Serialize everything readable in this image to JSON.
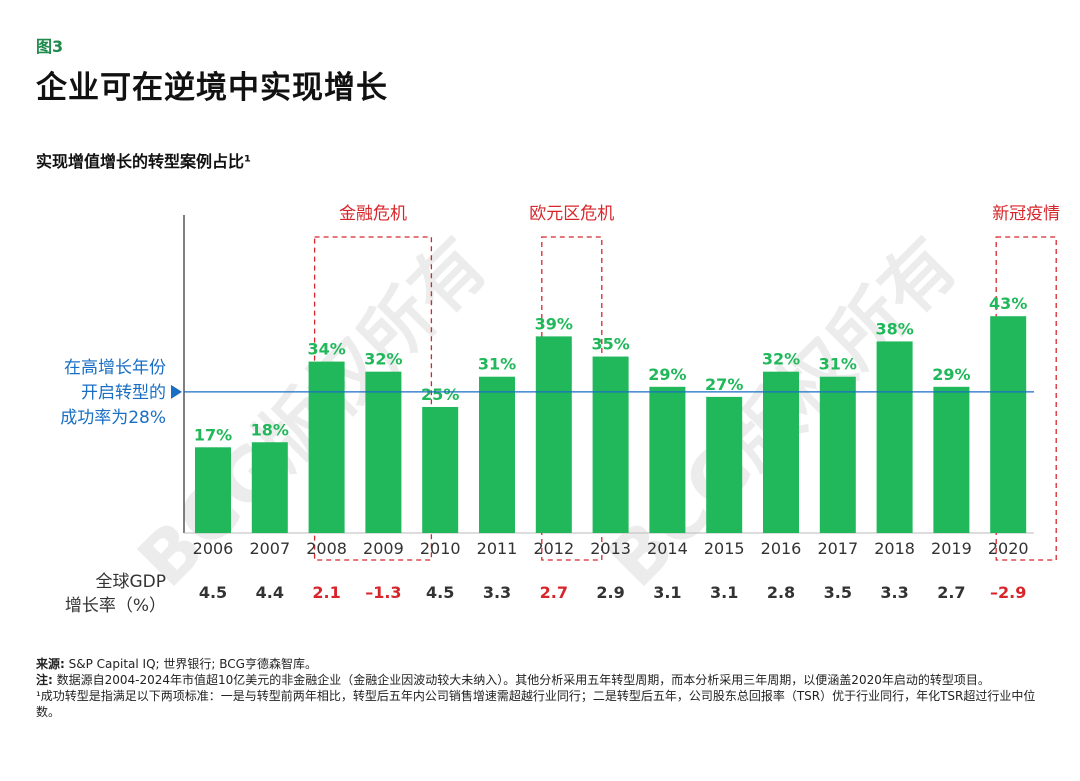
{
  "figure_label": "图3",
  "title": "企业可在逆境中实现增长",
  "subtitle": "实现增值增长的转型案例占比¹",
  "watermark": "BCG版权所有",
  "colors": {
    "bar": "#20b85a",
    "value_label": "#20b85a",
    "crisis": "#d7262b",
    "avg_line": "#1a6fc4",
    "text": "#1a1a1a",
    "axis": "#555555"
  },
  "chart_data": {
    "type": "bar",
    "title": "实现增值增长的转型案例占比¹",
    "categories": [
      "2006",
      "2007",
      "2008",
      "2009",
      "2010",
      "2011",
      "2012",
      "2013",
      "2014",
      "2015",
      "2016",
      "2017",
      "2018",
      "2019",
      "2020"
    ],
    "values": [
      17,
      18,
      34,
      32,
      25,
      31,
      39,
      35,
      29,
      27,
      32,
      31,
      38,
      29,
      43
    ],
    "value_labels": [
      "17%",
      "18%",
      "34%",
      "32%",
      "25%",
      "31%",
      "39%",
      "35%",
      "29%",
      "27%",
      "32%",
      "31%",
      "38%",
      "29%",
      "43%"
    ],
    "ylim": [
      0,
      60
    ],
    "reference_line": {
      "value": 28,
      "label_lines": [
        "在高增长年份",
        "开启转型的",
        "成功率为28%"
      ]
    },
    "crisis_periods": [
      {
        "label": "金融危机",
        "categories": [
          "2008",
          "2009"
        ]
      },
      {
        "label": "欧元区危机",
        "categories": [
          "2012"
        ]
      },
      {
        "label": "新冠疫情",
        "categories": [
          "2020"
        ]
      }
    ],
    "gdp_row": {
      "label_lines": [
        "全球GDP",
        "增长率（%）"
      ],
      "values": [
        "4.5",
        "4.4",
        "2.1",
        "–1.3",
        "4.5",
        "3.3",
        "2.7",
        "2.9",
        "3.1",
        "3.1",
        "2.8",
        "3.5",
        "3.3",
        "2.7",
        "–2.9"
      ],
      "highlight": [
        false,
        false,
        true,
        true,
        false,
        false,
        true,
        false,
        false,
        false,
        false,
        false,
        false,
        false,
        true
      ]
    }
  },
  "notes": {
    "source_label": "来源:",
    "source_text": " S&P Capital IQ; 世界银行; BCG亨德森智库。",
    "note_label": "注:",
    "note_text": " 数据源自2004-2024年市值超10亿美元的非金融企业（金融企业因波动较大未纳入）。其他分析采用五年转型周期，而本分析采用三年周期，以便涵盖2020年启动的转型项目。",
    "footnote": "¹成功转型是指满足以下两项标准：一是与转型前两年相比，转型后五年内公司销售增速需超越行业同行；二是转型后五年，公司股东总回报率（TSR）优于行业同行，年化TSR超过行业中位数。"
  }
}
